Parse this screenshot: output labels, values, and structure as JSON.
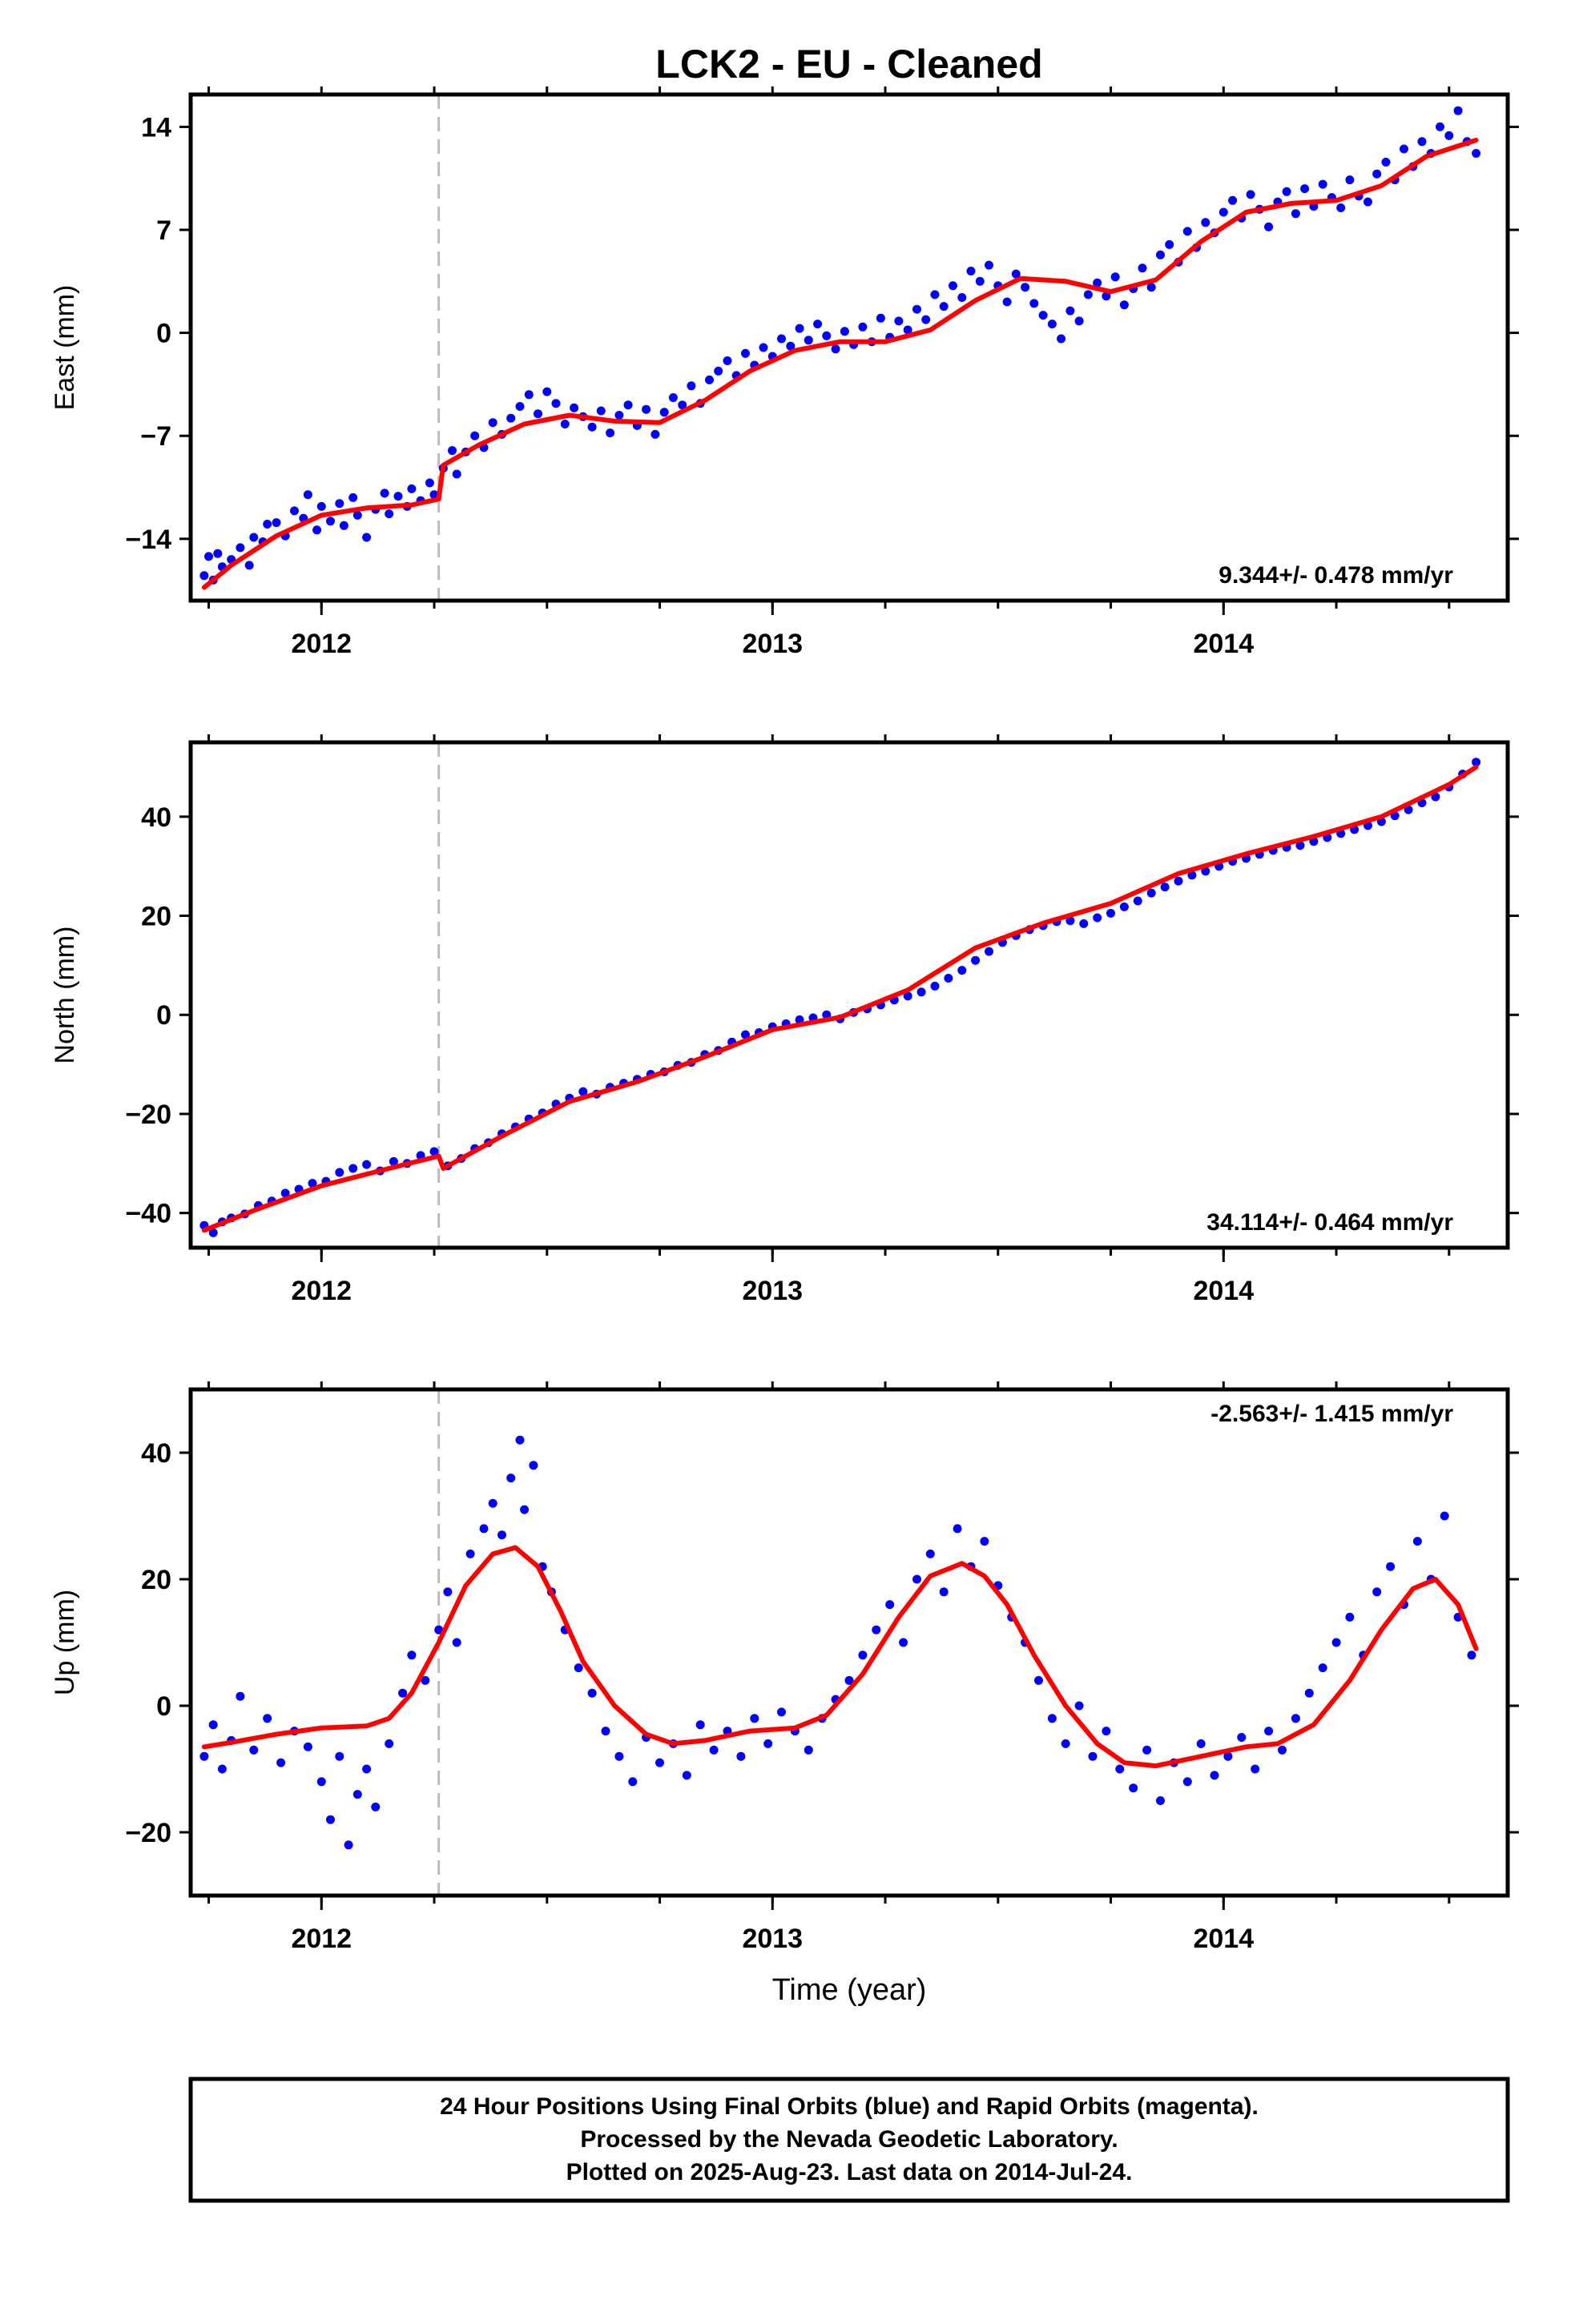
{
  "colors": {
    "final_orbits": "#0000ff",
    "model_fit": "#ff0000",
    "event_line": "#bbbbbb"
  },
  "chart_data": [
    {
      "type": "scatter",
      "title": "LCK2  - EU - Cleaned",
      "ylabel": "East (mm)",
      "xlabel": "",
      "xlim": [
        2011.71,
        2014.63
      ],
      "ylim": [
        -18.2,
        16.2
      ],
      "yticks": [
        "14",
        "7",
        "0",
        "−7",
        "−14"
      ],
      "ytick_values": [
        14,
        7,
        0,
        -7,
        -14
      ],
      "xticks": [
        "2012",
        "2013",
        "2014"
      ],
      "xtick_values": [
        2012,
        2013,
        2014
      ],
      "event_line_x": 2012.26,
      "rate_label": "9.344+/- 0.478 mm/yr",
      "fit_curve": {
        "x": [
          2011.74,
          2011.8,
          2011.9,
          2012.0,
          2012.1,
          2012.2,
          2012.26,
          2012.27,
          2012.35,
          2012.45,
          2012.55,
          2012.65,
          2012.75,
          2012.85,
          2012.95,
          2013.05,
          2013.15,
          2013.25,
          2013.35,
          2013.45,
          2013.55,
          2013.65,
          2013.75,
          2013.85,
          2013.95,
          2014.05,
          2014.15,
          2014.25,
          2014.35,
          2014.45,
          2014.56
        ],
        "y": [
          -17.3,
          -15.8,
          -13.8,
          -12.4,
          -11.9,
          -11.7,
          -11.3,
          -9.0,
          -7.6,
          -6.2,
          -5.6,
          -6.0,
          -6.1,
          -4.6,
          -2.6,
          -1.2,
          -0.6,
          -0.6,
          0.2,
          2.2,
          3.7,
          3.5,
          2.8,
          3.6,
          6.2,
          8.2,
          8.8,
          9.0,
          10.0,
          12.0,
          13.1
        ]
      },
      "series": [
        {
          "name": "",
          "color": "#0000ff",
          "x": [
            2011.74,
            2011.75,
            2011.76,
            2011.77,
            2011.78,
            2011.8,
            2011.82,
            2011.84,
            2011.85,
            2011.87,
            2011.88,
            2011.9,
            2011.92,
            2011.94,
            2011.96,
            2011.97,
            2011.99,
            2012.0,
            2012.02,
            2012.04,
            2012.05,
            2012.07,
            2012.08,
            2012.1,
            2012.12,
            2012.14,
            2012.15,
            2012.17,
            2012.19,
            2012.2,
            2012.22,
            2012.24,
            2012.25,
            2012.27,
            2012.29,
            2012.3,
            2012.32,
            2012.34,
            2012.36,
            2012.38,
            2012.4,
            2012.42,
            2012.44,
            2012.46,
            2012.48,
            2012.5,
            2012.52,
            2012.54,
            2012.56,
            2012.58,
            2012.6,
            2012.62,
            2012.64,
            2012.66,
            2012.68,
            2012.7,
            2012.72,
            2012.74,
            2012.76,
            2012.78,
            2012.8,
            2012.82,
            2012.84,
            2012.86,
            2012.88,
            2012.9,
            2012.92,
            2012.94,
            2012.96,
            2012.98,
            2013.0,
            2013.02,
            2013.04,
            2013.06,
            2013.08,
            2013.1,
            2013.12,
            2013.14,
            2013.16,
            2013.18,
            2013.2,
            2013.22,
            2013.24,
            2013.26,
            2013.28,
            2013.3,
            2013.32,
            2013.34,
            2013.36,
            2013.38,
            2013.4,
            2013.42,
            2013.44,
            2013.46,
            2013.48,
            2013.5,
            2013.52,
            2013.54,
            2013.56,
            2013.58,
            2013.6,
            2013.62,
            2013.64,
            2013.66,
            2013.68,
            2013.7,
            2013.72,
            2013.74,
            2013.76,
            2013.78,
            2013.8,
            2013.82,
            2013.84,
            2013.86,
            2013.88,
            2013.9,
            2013.92,
            2013.94,
            2013.96,
            2013.98,
            2014.0,
            2014.02,
            2014.04,
            2014.06,
            2014.08,
            2014.1,
            2014.12,
            2014.14,
            2014.16,
            2014.18,
            2014.2,
            2014.22,
            2014.24,
            2014.26,
            2014.28,
            2014.3,
            2014.32,
            2014.34,
            2014.36,
            2014.38,
            2014.4,
            2014.42,
            2014.44,
            2014.46,
            2014.48,
            2014.5,
            2014.52,
            2014.54,
            2014.56
          ],
          "y": [
            -16.5,
            -15.2,
            -16.8,
            -15.0,
            -15.9,
            -15.4,
            -14.6,
            -15.8,
            -13.9,
            -14.2,
            -13.0,
            -12.9,
            -13.8,
            -12.1,
            -12.6,
            -11.0,
            -13.4,
            -11.8,
            -12.8,
            -11.6,
            -13.1,
            -11.2,
            -12.4,
            -13.9,
            -12.0,
            -10.9,
            -12.3,
            -11.1,
            -11.8,
            -10.6,
            -11.4,
            -10.2,
            -11.0,
            -9.2,
            -8.0,
            -9.6,
            -8.1,
            -7.0,
            -7.8,
            -6.1,
            -6.9,
            -5.8,
            -5.0,
            -4.2,
            -5.5,
            -4.0,
            -4.8,
            -6.2,
            -5.1,
            -5.7,
            -6.4,
            -5.3,
            -6.8,
            -5.6,
            -4.9,
            -6.3,
            -5.2,
            -6.9,
            -5.4,
            -4.4,
            -4.9,
            -3.6,
            -4.8,
            -3.2,
            -2.6,
            -1.9,
            -2.9,
            -1.4,
            -2.2,
            -1.0,
            -1.6,
            -0.4,
            -0.9,
            0.3,
            -0.5,
            0.6,
            -0.2,
            -1.1,
            0.1,
            -0.8,
            0.4,
            -0.6,
            1.0,
            -0.3,
            0.8,
            0.2,
            1.6,
            0.9,
            2.6,
            1.8,
            3.2,
            2.4,
            4.2,
            3.5,
            4.6,
            3.2,
            2.1,
            4.0,
            3.1,
            2.0,
            1.2,
            0.6,
            -0.4,
            1.5,
            0.8,
            2.6,
            3.4,
            2.5,
            3.8,
            1.9,
            3.0,
            4.4,
            3.1,
            5.3,
            6.0,
            4.8,
            6.9,
            5.8,
            7.5,
            6.8,
            8.2,
            9.0,
            7.8,
            9.4,
            8.4,
            7.2,
            8.9,
            9.6,
            8.1,
            9.8,
            8.6,
            10.1,
            9.2,
            8.5,
            10.4,
            9.3,
            8.9,
            10.8,
            11.6,
            10.4,
            12.5,
            11.3,
            13.0,
            12.2,
            14.0,
            13.4,
            15.1,
            13.0,
            12.2
          ]
        }
      ]
    },
    {
      "type": "scatter",
      "title": "",
      "ylabel": "North (mm)",
      "xlabel": "",
      "xlim": [
        2011.71,
        2014.63
      ],
      "ylim": [
        -47,
        55
      ],
      "yticks": [
        "40",
        "20",
        "0",
        "−20",
        "−40"
      ],
      "ytick_values": [
        40,
        20,
        0,
        -20,
        -40
      ],
      "xticks": [
        "2012",
        "2013",
        "2014"
      ],
      "xtick_values": [
        2012,
        2013,
        2014
      ],
      "event_line_x": 2012.26,
      "rate_label": "34.114+/- 0.464 mm/yr",
      "fit_curve": {
        "x": [
          2011.74,
          2011.85,
          2012.0,
          2012.15,
          2012.26,
          2012.27,
          2012.4,
          2012.55,
          2012.7,
          2012.85,
          2013.0,
          2013.15,
          2013.3,
          2013.45,
          2013.6,
          2013.75,
          2013.9,
          2014.05,
          2014.2,
          2014.35,
          2014.5,
          2014.56
        ],
        "y": [
          -43.5,
          -39.5,
          -34.5,
          -31.0,
          -28.5,
          -31.0,
          -24.5,
          -17.5,
          -13.5,
          -8.5,
          -3.0,
          -0.5,
          5.0,
          13.5,
          18.5,
          22.5,
          28.5,
          32.5,
          36.0,
          40.0,
          46.5,
          50.0
        ]
      },
      "series": [
        {
          "name": "",
          "color": "#0000ff",
          "x": [
            2011.74,
            2011.76,
            2011.78,
            2011.8,
            2011.83,
            2011.86,
            2011.89,
            2011.92,
            2011.95,
            2011.98,
            2012.01,
            2012.04,
            2012.07,
            2012.1,
            2012.13,
            2012.16,
            2012.19,
            2012.22,
            2012.25,
            2012.28,
            2012.31,
            2012.34,
            2012.37,
            2012.4,
            2012.43,
            2012.46,
            2012.49,
            2012.52,
            2012.55,
            2012.58,
            2012.61,
            2012.64,
            2012.67,
            2012.7,
            2012.73,
            2012.76,
            2012.79,
            2012.82,
            2012.85,
            2012.88,
            2012.91,
            2012.94,
            2012.97,
            2013.0,
            2013.03,
            2013.06,
            2013.09,
            2013.12,
            2013.15,
            2013.18,
            2013.21,
            2013.24,
            2013.27,
            2013.3,
            2013.33,
            2013.36,
            2013.39,
            2013.42,
            2013.45,
            2013.48,
            2013.51,
            2013.54,
            2013.57,
            2013.6,
            2013.63,
            2013.66,
            2013.69,
            2013.72,
            2013.75,
            2013.78,
            2013.81,
            2013.84,
            2013.87,
            2013.9,
            2013.93,
            2013.96,
            2013.99,
            2014.02,
            2014.05,
            2014.08,
            2014.11,
            2014.14,
            2014.17,
            2014.2,
            2014.23,
            2014.26,
            2014.29,
            2014.32,
            2014.35,
            2014.38,
            2014.41,
            2014.44,
            2014.47,
            2014.5,
            2014.53,
            2014.56
          ],
          "y": [
            -42.5,
            -44.0,
            -41.8,
            -41.0,
            -40.2,
            -38.5,
            -37.6,
            -36.0,
            -35.2,
            -34.0,
            -33.6,
            -31.8,
            -31.0,
            -30.2,
            -31.5,
            -29.6,
            -30.0,
            -28.4,
            -27.6,
            -30.5,
            -29.0,
            -27.0,
            -25.8,
            -24.0,
            -22.6,
            -21.0,
            -19.8,
            -18.0,
            -16.8,
            -15.5,
            -16.0,
            -14.6,
            -13.8,
            -13.0,
            -12.0,
            -11.5,
            -10.2,
            -9.6,
            -8.0,
            -7.2,
            -5.5,
            -4.0,
            -3.6,
            -2.4,
            -1.8,
            -1.0,
            -0.6,
            0.0,
            -0.8,
            0.5,
            1.2,
            2.0,
            3.0,
            3.8,
            4.6,
            5.8,
            7.4,
            9.0,
            11.0,
            12.8,
            14.6,
            16.0,
            17.2,
            18.0,
            18.8,
            19.0,
            18.4,
            19.6,
            20.5,
            21.8,
            23.0,
            24.6,
            25.8,
            27.0,
            28.2,
            29.0,
            30.0,
            31.0,
            31.6,
            32.4,
            33.2,
            33.8,
            34.2,
            35.0,
            35.8,
            36.6,
            37.4,
            38.2,
            39.0,
            40.2,
            41.4,
            42.8,
            44.0,
            46.0,
            48.6,
            51.0
          ]
        }
      ]
    },
    {
      "type": "scatter",
      "title": "",
      "ylabel": "Up (mm)",
      "xlabel": "Time (year)",
      "xlim": [
        2011.71,
        2014.63
      ],
      "ylim": [
        -30,
        50
      ],
      "yticks": [
        "40",
        "20",
        "0",
        "−20"
      ],
      "ytick_values": [
        40,
        20,
        0,
        -20
      ],
      "xticks": [
        "2012",
        "2013",
        "2014"
      ],
      "xtick_values": [
        2012,
        2013,
        2014
      ],
      "event_line_x": 2012.26,
      "rate_label": "-2.563+/- 1.415 mm/yr",
      "fit_curve": {
        "x": [
          2011.74,
          2011.8,
          2011.9,
          2012.0,
          2012.1,
          2012.15,
          2012.2,
          2012.26,
          2012.32,
          2012.38,
          2012.43,
          2012.48,
          2012.53,
          2012.58,
          2012.65,
          2012.72,
          2012.78,
          2012.85,
          2012.95,
          2013.05,
          2013.12,
          2013.2,
          2013.28,
          2013.35,
          2013.42,
          2013.47,
          2013.52,
          2013.58,
          2013.65,
          2013.72,
          2013.78,
          2013.85,
          2013.95,
          2014.05,
          2014.12,
          2014.2,
          2014.28,
          2014.35,
          2014.42,
          2014.47,
          2014.52,
          2014.56
        ],
        "y": [
          -6.5,
          -5.8,
          -4.5,
          -3.5,
          -3.2,
          -2.0,
          2.0,
          10.0,
          19.0,
          24.0,
          25.0,
          22.0,
          15.0,
          7.0,
          0.0,
          -4.5,
          -6.0,
          -5.5,
          -4.0,
          -3.5,
          -1.5,
          5.0,
          14.0,
          20.5,
          22.5,
          20.5,
          16.0,
          8.0,
          0.0,
          -6.0,
          -9.0,
          -9.5,
          -8.0,
          -6.5,
          -6.0,
          -3.0,
          4.0,
          12.0,
          18.5,
          20.0,
          16.0,
          9.0
        ]
      },
      "series": [
        {
          "name": "",
          "color": "#0000ff",
          "x": [
            2011.74,
            2011.76,
            2011.78,
            2011.8,
            2011.82,
            2011.85,
            2011.88,
            2011.91,
            2011.94,
            2011.97,
            2012.0,
            2012.02,
            2012.04,
            2012.06,
            2012.08,
            2012.1,
            2012.12,
            2012.15,
            2012.18,
            2012.2,
            2012.23,
            2012.26,
            2012.28,
            2012.3,
            2012.33,
            2012.36,
            2012.38,
            2012.4,
            2012.42,
            2012.44,
            2012.45,
            2012.47,
            2012.49,
            2012.51,
            2012.54,
            2012.57,
            2012.6,
            2012.63,
            2012.66,
            2012.69,
            2012.72,
            2012.75,
            2012.78,
            2012.81,
            2012.84,
            2012.87,
            2012.9,
            2012.93,
            2012.96,
            2012.99,
            2013.02,
            2013.05,
            2013.08,
            2013.11,
            2013.14,
            2013.17,
            2013.2,
            2013.23,
            2013.26,
            2013.29,
            2013.32,
            2013.35,
            2013.38,
            2013.41,
            2013.44,
            2013.47,
            2013.5,
            2013.53,
            2013.56,
            2013.59,
            2013.62,
            2013.65,
            2013.68,
            2013.71,
            2013.74,
            2013.77,
            2013.8,
            2013.83,
            2013.86,
            2013.89,
            2013.92,
            2013.95,
            2013.98,
            2014.01,
            2014.04,
            2014.07,
            2014.1,
            2014.13,
            2014.16,
            2014.19,
            2014.22,
            2014.25,
            2014.28,
            2014.31,
            2014.34,
            2014.37,
            2014.4,
            2014.43,
            2014.46,
            2014.49,
            2014.52,
            2014.55
          ],
          "y": [
            -8.0,
            -3.0,
            -10.0,
            -5.5,
            1.5,
            -7.0,
            -2.0,
            -9.0,
            -4.0,
            -6.5,
            -12.0,
            -18.0,
            -8.0,
            -22.0,
            -14.0,
            -10.0,
            -16.0,
            -6.0,
            2.0,
            8.0,
            4.0,
            12.0,
            18.0,
            10.0,
            24.0,
            28.0,
            32.0,
            27.0,
            36.0,
            42.0,
            31.0,
            38.0,
            22.0,
            18.0,
            12.0,
            6.0,
            2.0,
            -4.0,
            -8.0,
            -12.0,
            -5.0,
            -9.0,
            -6.0,
            -11.0,
            -3.0,
            -7.0,
            -4.0,
            -8.0,
            -2.0,
            -6.0,
            -1.0,
            -4.0,
            -7.0,
            -2.0,
            1.0,
            4.0,
            8.0,
            12.0,
            16.0,
            10.0,
            20.0,
            24.0,
            18.0,
            28.0,
            22.0,
            26.0,
            19.0,
            14.0,
            10.0,
            4.0,
            -2.0,
            -6.0,
            0.0,
            -8.0,
            -4.0,
            -10.0,
            -13.0,
            -7.0,
            -15.0,
            -9.0,
            -12.0,
            -6.0,
            -11.0,
            -8.0,
            -5.0,
            -10.0,
            -4.0,
            -7.0,
            -2.0,
            2.0,
            6.0,
            10.0,
            14.0,
            8.0,
            18.0,
            22.0,
            16.0,
            26.0,
            20.0,
            30.0,
            14.0,
            8.0
          ]
        }
      ]
    }
  ],
  "footer": {
    "line1": "24 Hour Positions Using Final Orbits (blue) and Rapid Orbits (magenta).",
    "line2": "Processed by the Nevada Geodetic Laboratory.",
    "line3": "Plotted on 2025-Aug-23. Last data on 2014-Jul-24."
  }
}
